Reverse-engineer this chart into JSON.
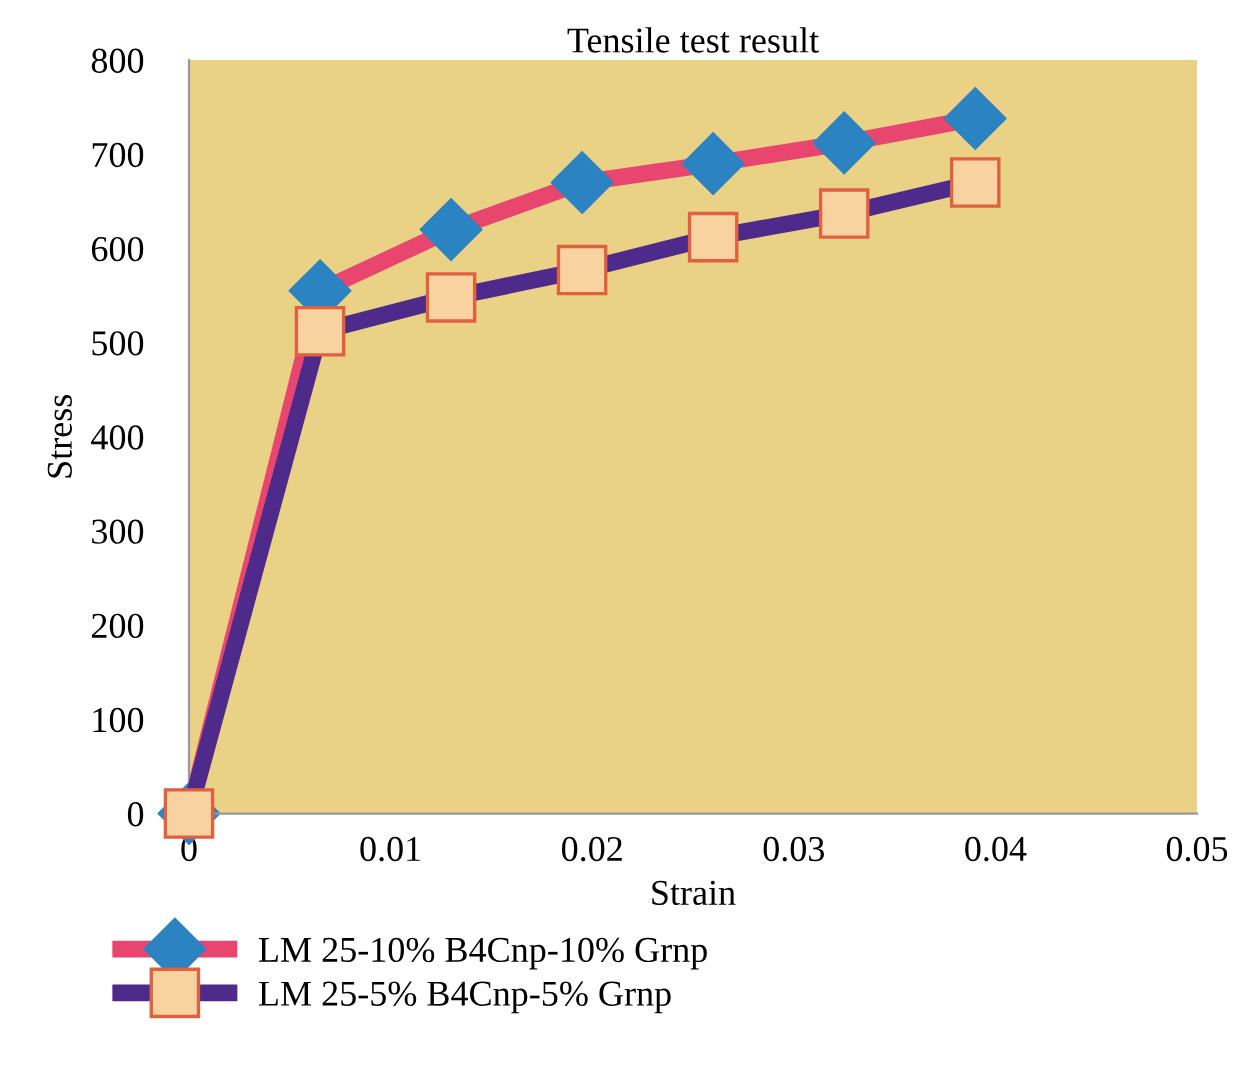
{
  "chart_data": {
    "type": "line",
    "title": "Tensile test result",
    "xlabel": "Strain",
    "ylabel": "Stress",
    "x": [
      0,
      0.0065,
      0.013,
      0.0195,
      0.026,
      0.0325,
      0.039
    ],
    "series": [
      {
        "name": "LM 25-10% B4Cnp-10% Grnp",
        "color": "#e8456f",
        "marker": "diamond",
        "values": [
          0,
          555,
          620,
          670,
          690,
          712,
          738
        ]
      },
      {
        "name": "LM 25-5% B4Cnp-5% Grnp",
        "color": "#4e2a8a",
        "marker": "square",
        "values": [
          0,
          512,
          548,
          577,
          612,
          637,
          670
        ]
      }
    ],
    "xlim": [
      0,
      0.05
    ],
    "xticks": [
      0,
      0.01,
      0.02,
      0.03,
      0.04,
      0.05
    ],
    "ylim": [
      0,
      800
    ],
    "yticks": [
      0,
      100,
      200,
      300,
      400,
      500,
      600,
      700,
      800
    ],
    "grid": false,
    "legend": "bottom",
    "line_style": "solid"
  }
}
